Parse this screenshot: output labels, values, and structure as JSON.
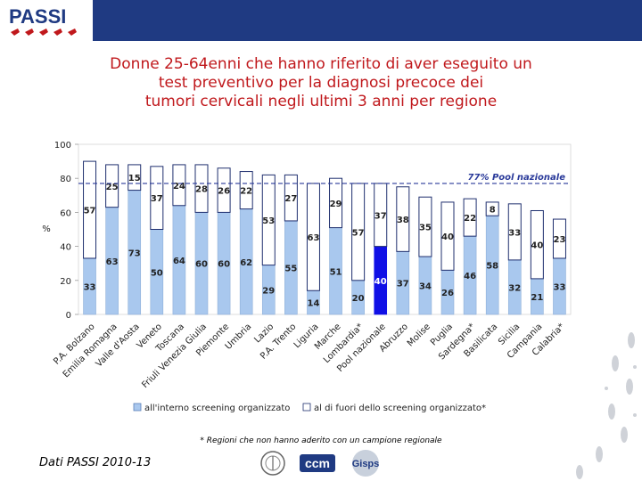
{
  "header": {
    "logo_text": "PASSI"
  },
  "title_lines": [
    "Donne 25-64enni che hanno riferito di aver eseguito un",
    "test preventivo per la diagnosi precoce dei",
    "tumori cervicali negli ultimi 3 anni per regione"
  ],
  "colors": {
    "topbar": "#1f3a82",
    "title": "#c0181c",
    "bar_inside": "#a9c8ee",
    "bar_highlight": "#1010e6",
    "bar_outside": "#ffffff",
    "outline": "#1f2f6e",
    "ref_line": "#2a3a9a",
    "logo_red": "#c0181c"
  },
  "chart_data": {
    "type": "bar",
    "stacked": true,
    "ylabel": "%",
    "ylim": [
      0,
      100
    ],
    "yticks": [
      0,
      20,
      40,
      60,
      80,
      100
    ],
    "reference_line": {
      "value": 77,
      "label": "77% Pool nazionale"
    },
    "highlight_category": "Pool nazionale",
    "categories": [
      "P.A. Bolzano",
      "Emilia Romagna",
      "Valle d'Aosta",
      "Veneto",
      "Toscana",
      "Friuli Venezia Giulia",
      "Piemonte",
      "Umbria",
      "Lazio",
      "P.A. Trento",
      "Liguria",
      "Marche",
      "Lombardia*",
      "Pool nazionale",
      "Abruzzo",
      "Molise",
      "Puglia",
      "Sardegna*",
      "Basilicata",
      "Sicilia",
      "Campania",
      "Calabria*"
    ],
    "series": [
      {
        "name": "all'interno screening organizzato",
        "values": [
          33,
          63,
          73,
          50,
          64,
          60,
          60,
          62,
          29,
          55,
          14,
          51,
          20,
          40,
          37,
          34,
          26,
          46,
          58,
          32,
          21,
          33
        ]
      },
      {
        "name": "al di fuori dello screening organizzato",
        "values": [
          57,
          25,
          15,
          37,
          24,
          28,
          26,
          22,
          53,
          27,
          63,
          29,
          57,
          37,
          38,
          35,
          40,
          22,
          8,
          33,
          40,
          23
        ]
      }
    ],
    "legend": [
      "all'interno screening organizzato",
      "al di fuori dello screening organizzato*"
    ]
  },
  "footnote": "* Regioni che non hanno aderito con un campione regionale",
  "source": "Dati PASSI 2010-13",
  "bottom_logos": [
    "ccm",
    "Gisps"
  ]
}
